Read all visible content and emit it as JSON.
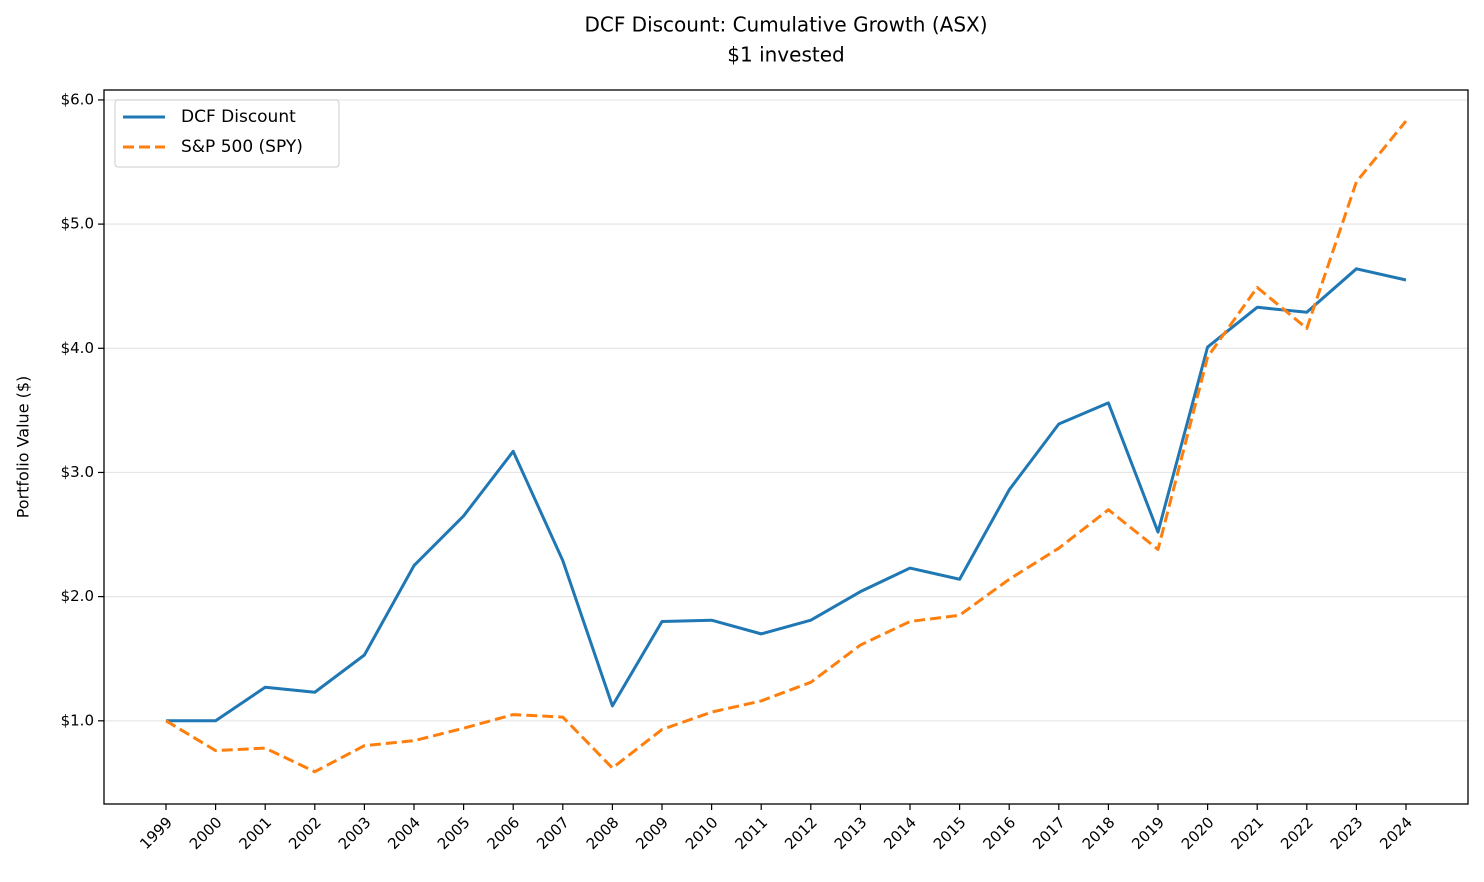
{
  "chart_data": {
    "type": "line",
    "title": "DCF Discount: Cumulative Growth (ASX)",
    "subtitle": "$1 invested",
    "y_label": "Portfolio Value ($)",
    "x": [
      1999,
      2000,
      2001,
      2002,
      2003,
      2004,
      2005,
      2006,
      2007,
      2008,
      2009,
      2010,
      2011,
      2012,
      2013,
      2014,
      2015,
      2016,
      2017,
      2018,
      2019,
      2020,
      2021,
      2022,
      2023,
      2024
    ],
    "series": [
      {
        "name": "DCF Discount",
        "color": "#1f77b4",
        "linestyle": "solid",
        "values": [
          1.0,
          1.0,
          1.27,
          1.23,
          1.53,
          2.25,
          2.65,
          3.17,
          2.29,
          1.12,
          1.8,
          1.81,
          1.7,
          1.81,
          2.04,
          2.23,
          2.14,
          2.86,
          3.39,
          3.56,
          2.52,
          4.01,
          4.33,
          4.29,
          4.64,
          4.55
        ]
      },
      {
        "name": "S&P 500 (SPY)",
        "color": "#ff7f0e",
        "linestyle": "dashed",
        "values": [
          1.0,
          0.76,
          0.78,
          0.59,
          0.8,
          0.84,
          0.94,
          1.05,
          1.03,
          0.62,
          0.93,
          1.07,
          1.16,
          1.31,
          1.61,
          1.8,
          1.85,
          2.14,
          2.39,
          2.7,
          2.38,
          3.93,
          4.49,
          4.16,
          5.34,
          5.83
        ]
      }
    ],
    "xlim": [
      1997.75,
      2025.25
    ],
    "xticks": [
      1999,
      2000,
      2001,
      2002,
      2003,
      2004,
      2005,
      2006,
      2007,
      2008,
      2009,
      2010,
      2011,
      2012,
      2013,
      2014,
      2015,
      2016,
      2017,
      2018,
      2019,
      2020,
      2021,
      2022,
      2023,
      2024
    ],
    "ylim": [
      0.33,
      6.08
    ],
    "yticks": [
      {
        "value": 1,
        "label": "$1.0"
      },
      {
        "value": 2,
        "label": "$2.0"
      },
      {
        "value": 3,
        "label": "$3.0"
      },
      {
        "value": 4,
        "label": "$4.0"
      },
      {
        "value": 5,
        "label": "$5.0"
      },
      {
        "value": 6,
        "label": "$6.0"
      }
    ],
    "grid": true,
    "legend": "upper left"
  }
}
